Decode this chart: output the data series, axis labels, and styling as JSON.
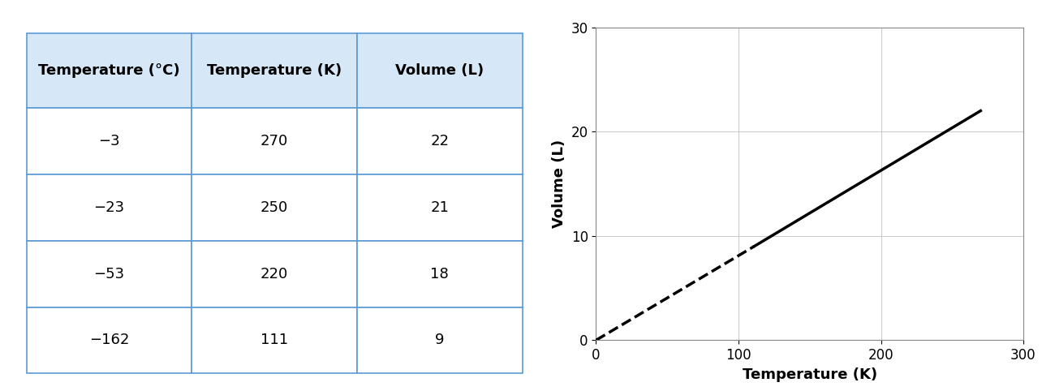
{
  "table_headers": [
    "Temperature (°C)",
    "Temperature (K)",
    "Volume (L)"
  ],
  "table_data": [
    [
      "−3",
      "270",
      "22"
    ],
    [
      "−23",
      "250",
      "21"
    ],
    [
      "−53",
      "220",
      "18"
    ],
    [
      "−162",
      "111",
      "9"
    ]
  ],
  "header_bg": "#d6e8f7",
  "row_bg": "#ffffff",
  "border_color": "#5b9bd5",
  "table_font_size": 13,
  "solid_line_x": [
    111,
    270
  ],
  "solid_line_y": [
    9,
    22
  ],
  "dashed_line_x": [
    0,
    111
  ],
  "dashed_line_y": [
    0,
    9
  ],
  "xlabel": "Temperature (K)",
  "ylabel": "Volume (L)",
  "xlim": [
    0,
    300
  ],
  "ylim": [
    0,
    30
  ],
  "xticks": [
    0,
    100,
    200,
    300
  ],
  "yticks": [
    0,
    10,
    20,
    30
  ],
  "grid_color": "#cccccc",
  "line_color": "#000000",
  "line_width": 2.5,
  "axis_label_fontsize": 13,
  "tick_fontsize": 12,
  "fig_width": 13.0,
  "fig_height": 4.82
}
